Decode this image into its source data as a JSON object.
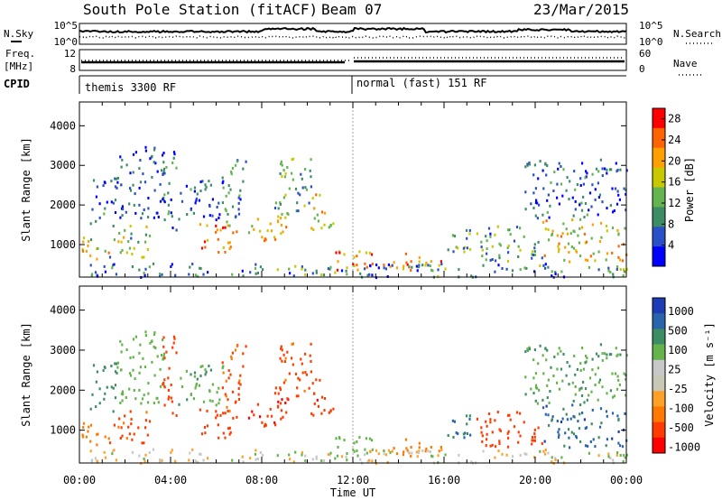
{
  "header": {
    "station": "South Pole Station (fitACF)",
    "beam": "Beam 07",
    "date": "23/Mar/2015"
  },
  "top_panels": {
    "nsky_label": "N.Sky",
    "nsearch_label": "N.Search",
    "noise_ticks": [
      "10^5",
      "10^0"
    ],
    "freq_label_1": "Freq.",
    "freq_label_2": "[MHz]",
    "freq_ticks": [
      "12",
      "8"
    ],
    "nave_label": "Nave",
    "nave_ticks": [
      "60",
      "0"
    ],
    "cpid_label": "CPID",
    "cpid_1": "themis 3300 RF",
    "cpid_2": "normal (fast) 151 RF"
  },
  "colors": {
    "power_scale": [
      "#0000ff",
      "#2a50c8",
      "#3c8c64",
      "#64b450",
      "#c8c800",
      "#ffa000",
      "#ff6400",
      "#ff0000"
    ],
    "velocity_scale": [
      "#ff0000",
      "#ff3c00",
      "#ff7800",
      "#ffa028",
      "#c8c8b4",
      "#c8c8c8",
      "#64b44b",
      "#3c8c64",
      "#2a64aa",
      "#1e3cb4"
    ]
  },
  "chart_data": [
    {
      "type": "heatmap",
      "name": "power",
      "ylabel": "Slant Range [km]",
      "xlabel": "Time UT",
      "yticks": [
        "1000",
        "2000",
        "3000",
        "4000"
      ],
      "xticks": [
        "00:00",
        "04:00",
        "08:00",
        "12:00",
        "16:00",
        "20:00",
        "00:00"
      ],
      "xlim_hours": [
        0,
        24
      ],
      "ylim_km": [
        180,
        4600
      ],
      "colorbar": {
        "label": "Power [dB]",
        "ticks": [
          "4",
          "8",
          "12",
          "16",
          "20",
          "24",
          "28"
        ],
        "range": [
          0,
          30
        ]
      }
    },
    {
      "type": "heatmap",
      "name": "velocity",
      "ylabel": "Slant Range [km]",
      "xlabel": "Time UT",
      "yticks": [
        "1000",
        "2000",
        "3000",
        "4000"
      ],
      "xticks": [
        "00:00",
        "04:00",
        "08:00",
        "12:00",
        "16:00",
        "20:00",
        "00:00"
      ],
      "xlim_hours": [
        0,
        24
      ],
      "ylim_km": [
        180,
        4600
      ],
      "colorbar": {
        "label": "Velocity [m s⁻¹]",
        "ticks": [
          "1000",
          "500",
          "100",
          "25",
          "-25",
          "-100",
          "-500",
          "-1000"
        ],
        "range": [
          -1000,
          1000
        ]
      }
    }
  ],
  "scatter_regions": [
    {
      "t0": 0.1,
      "t1": 1.3,
      "r0": 600,
      "r1": 1300,
      "p": 18,
      "v": -50
    },
    {
      "t0": 0.4,
      "t1": 1.6,
      "r0": 1500,
      "r1": 2700,
      "p": 6,
      "v": 300
    },
    {
      "t0": 1.3,
      "t1": 3.2,
      "r0": 700,
      "r1": 1500,
      "p": 14,
      "v": -150
    },
    {
      "t0": 1.6,
      "t1": 3.7,
      "r0": 1700,
      "r1": 3500,
      "p": 5,
      "v": 60
    },
    {
      "t0": 3.6,
      "t1": 4.3,
      "r0": 1300,
      "r1": 3400,
      "p": 6,
      "v": -200
    },
    {
      "t0": 4.3,
      "t1": 6.3,
      "r0": 1600,
      "r1": 2700,
      "p": 5,
      "v": 80
    },
    {
      "t0": 5.2,
      "t1": 6.9,
      "r0": 800,
      "r1": 1600,
      "p": 22,
      "v": -320
    },
    {
      "t0": 6.2,
      "t1": 7.3,
      "r0": 1500,
      "r1": 3200,
      "p": 10,
      "v": -120
    },
    {
      "t0": 7.3,
      "t1": 9.2,
      "r0": 1100,
      "r1": 1900,
      "p": 20,
      "v": -400
    },
    {
      "t0": 8.5,
      "t1": 10.2,
      "r0": 1800,
      "r1": 3200,
      "p": 11,
      "v": -150
    },
    {
      "t0": 10.1,
      "t1": 11.2,
      "r0": 1300,
      "r1": 2300,
      "p": 18,
      "v": -350
    },
    {
      "t0": 11.2,
      "t1": 13.6,
      "r0": 350,
      "r1": 900,
      "p": 22,
      "v": 60
    },
    {
      "t0": 13.6,
      "t1": 15.9,
      "r0": 350,
      "r1": 800,
      "p": 24,
      "v": -60
    },
    {
      "t0": 15.9,
      "t1": 17.2,
      "r0": 700,
      "r1": 1400,
      "p": 12,
      "v": 600
    },
    {
      "t0": 17.2,
      "t1": 20.3,
      "r0": 600,
      "r1": 1500,
      "p": 10,
      "v": -300
    },
    {
      "t0": 20.3,
      "t1": 24.0,
      "r0": 600,
      "r1": 1700,
      "p": 18,
      "v": 700
    },
    {
      "t0": 19.5,
      "t1": 24.0,
      "r0": 1700,
      "r1": 3200,
      "p": 6,
      "v": 90
    },
    {
      "t0": 0.0,
      "t1": 24.0,
      "r0": 200,
      "r1": 550,
      "p": 9,
      "v": 10
    }
  ]
}
